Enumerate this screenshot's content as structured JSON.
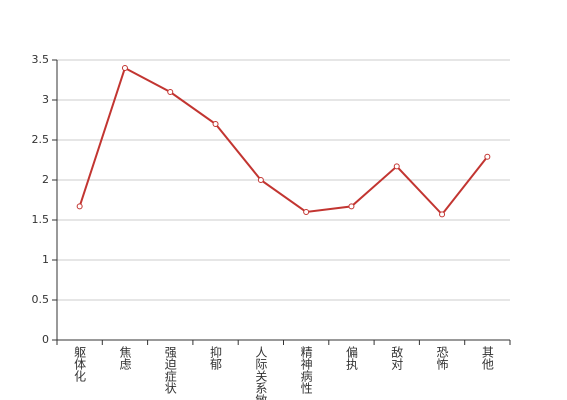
{
  "chart_data": {
    "type": "line",
    "categories": [
      "躯体化",
      "焦虑",
      "强迫症状",
      "抑郁",
      "人际关系敏感",
      "精神病性",
      "偏执",
      "敌对",
      "恐怖",
      "其他"
    ],
    "series": [
      {
        "color": "#c23531",
        "values": [
          1.67,
          3.4,
          3.1,
          2.7,
          2.0,
          1.6,
          1.67,
          2.17,
          1.57,
          2.29
        ]
      }
    ],
    "ylim": [
      0,
      3.5
    ],
    "yticks": [
      0,
      0.5,
      1,
      1.5,
      2,
      2.5,
      3,
      3.5
    ],
    "grid": true
  }
}
